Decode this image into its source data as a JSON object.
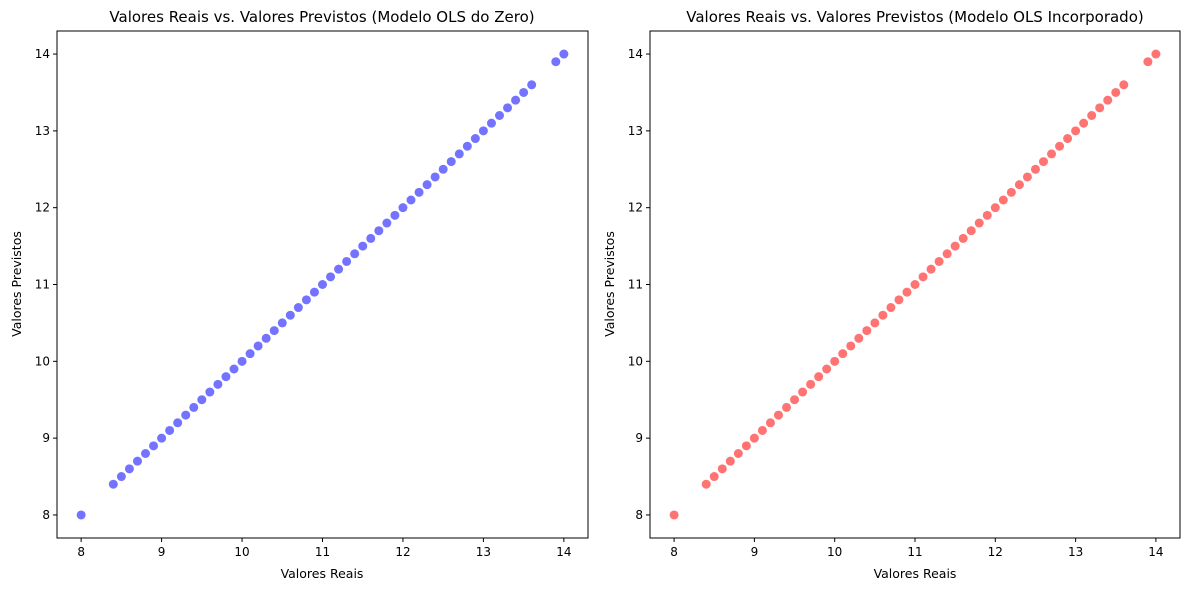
{
  "chart_data": [
    {
      "type": "scatter",
      "title": "Valores Reais vs. Valores Previstos (Modelo OLS do Zero)",
      "xlabel": "Valores Reais",
      "ylabel": "Valores Previstos",
      "xlim": [
        7.7,
        14.3
      ],
      "ylim": [
        7.7,
        14.3
      ],
      "xticks": [
        8,
        9,
        10,
        11,
        12,
        13,
        14
      ],
      "yticks": [
        8,
        9,
        10,
        11,
        12,
        13,
        14
      ],
      "marker_color": "#0000ff",
      "marker_alpha": 0.55,
      "grid": false,
      "x": [
        8.0,
        8.4,
        8.5,
        8.6,
        8.7,
        8.8,
        8.9,
        9.0,
        9.1,
        9.2,
        9.3,
        9.4,
        9.5,
        9.6,
        9.7,
        9.8,
        9.9,
        10.0,
        10.1,
        10.2,
        10.3,
        10.4,
        10.5,
        10.6,
        10.7,
        10.8,
        10.9,
        11.0,
        11.1,
        11.2,
        11.3,
        11.4,
        11.5,
        11.6,
        11.7,
        11.8,
        11.9,
        12.0,
        12.1,
        12.2,
        12.3,
        12.4,
        12.5,
        12.6,
        12.7,
        12.8,
        12.9,
        13.0,
        13.1,
        13.2,
        13.3,
        13.4,
        13.5,
        13.6,
        13.9,
        14.0
      ],
      "y": [
        8.0,
        8.4,
        8.5,
        8.6,
        8.7,
        8.8,
        8.9,
        9.0,
        9.1,
        9.2,
        9.3,
        9.4,
        9.5,
        9.6,
        9.7,
        9.8,
        9.9,
        10.0,
        10.1,
        10.2,
        10.3,
        10.4,
        10.5,
        10.6,
        10.7,
        10.8,
        10.9,
        11.0,
        11.1,
        11.2,
        11.3,
        11.4,
        11.5,
        11.6,
        11.7,
        11.8,
        11.9,
        12.0,
        12.1,
        12.2,
        12.3,
        12.4,
        12.5,
        12.6,
        12.7,
        12.8,
        12.9,
        13.0,
        13.1,
        13.2,
        13.3,
        13.4,
        13.5,
        13.6,
        13.9,
        14.0
      ]
    },
    {
      "type": "scatter",
      "title": "Valores Reais vs. Valores Previstos (Modelo OLS Incorporado)",
      "xlabel": "Valores Reais",
      "ylabel": "Valores Previstos",
      "xlim": [
        7.7,
        14.3
      ],
      "ylim": [
        7.7,
        14.3
      ],
      "xticks": [
        8,
        9,
        10,
        11,
        12,
        13,
        14
      ],
      "yticks": [
        8,
        9,
        10,
        11,
        12,
        13,
        14
      ],
      "marker_color": "#ff0000",
      "marker_alpha": 0.55,
      "grid": false,
      "x": [
        8.0,
        8.4,
        8.5,
        8.6,
        8.7,
        8.8,
        8.9,
        9.0,
        9.1,
        9.2,
        9.3,
        9.4,
        9.5,
        9.6,
        9.7,
        9.8,
        9.9,
        10.0,
        10.1,
        10.2,
        10.3,
        10.4,
        10.5,
        10.6,
        10.7,
        10.8,
        10.9,
        11.0,
        11.1,
        11.2,
        11.3,
        11.4,
        11.5,
        11.6,
        11.7,
        11.8,
        11.9,
        12.0,
        12.1,
        12.2,
        12.3,
        12.4,
        12.5,
        12.6,
        12.7,
        12.8,
        12.9,
        13.0,
        13.1,
        13.2,
        13.3,
        13.4,
        13.5,
        13.6,
        13.9,
        14.0
      ],
      "y": [
        8.0,
        8.4,
        8.5,
        8.6,
        8.7,
        8.8,
        8.9,
        9.0,
        9.1,
        9.2,
        9.3,
        9.4,
        9.5,
        9.6,
        9.7,
        9.8,
        9.9,
        10.0,
        10.1,
        10.2,
        10.3,
        10.4,
        10.5,
        10.6,
        10.7,
        10.8,
        10.9,
        11.0,
        11.1,
        11.2,
        11.3,
        11.4,
        11.5,
        11.6,
        11.7,
        11.8,
        11.9,
        12.0,
        12.1,
        12.2,
        12.3,
        12.4,
        12.5,
        12.6,
        12.7,
        12.8,
        12.9,
        13.0,
        13.1,
        13.2,
        13.3,
        13.4,
        13.5,
        13.6,
        13.9,
        14.0
      ]
    }
  ]
}
